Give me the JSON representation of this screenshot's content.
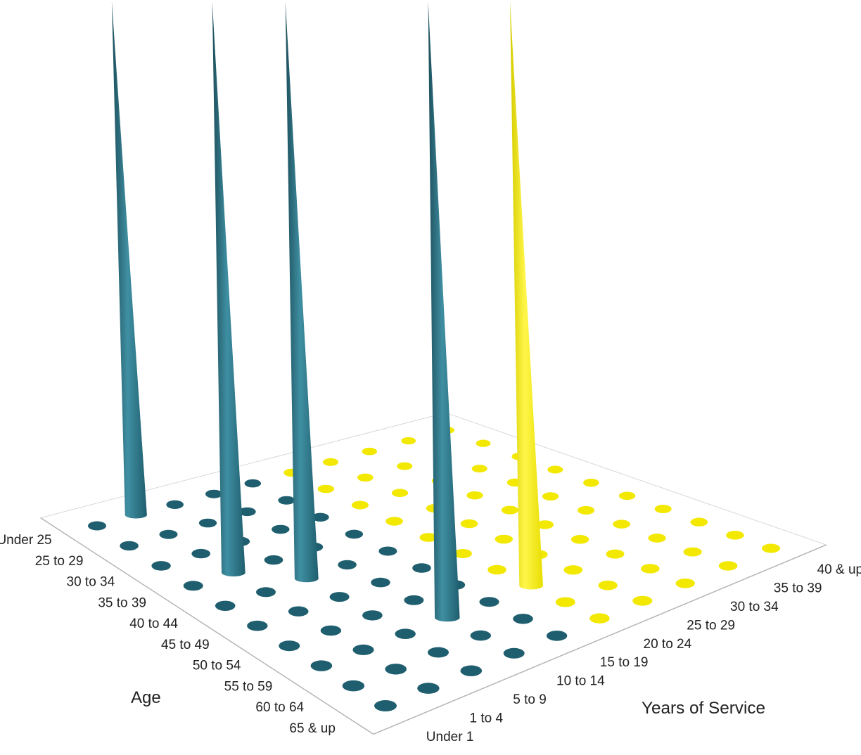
{
  "chart_data": {
    "type": "3d-spike",
    "age_axis": {
      "label": "Age",
      "categories": [
        "Under 25",
        "25 to 29",
        "30 to 34",
        "35 to 39",
        "40 to 44",
        "45 to 49",
        "50 to 54",
        "55 to 59",
        "60 to 64",
        "65 & up"
      ]
    },
    "service_axis": {
      "label": "Years of Service",
      "categories": [
        "Under 1",
        "1 to 4",
        "5 to 9",
        "10 to 14",
        "15 to 19",
        "20 to 24",
        "25 to 29",
        "30 to 34",
        "35 to 39",
        "40 & up"
      ]
    },
    "grid": "markers at every age × service cell",
    "colors": {
      "teal": "#1f5e6e",
      "teal_light": "#3f8fa2",
      "yellow": "#f2e800",
      "yellow_dark": "#c9c000",
      "frame": "#b5b5b5"
    },
    "marker_colors": [
      [
        "teal",
        "teal",
        "teal",
        "teal",
        "teal",
        "yellow",
        "yellow",
        "yellow",
        "yellow",
        "yellow"
      ],
      [
        "teal",
        "teal",
        "teal",
        "teal",
        "teal",
        "yellow",
        "yellow",
        "yellow",
        "yellow",
        "yellow"
      ],
      [
        "teal",
        "teal",
        "teal",
        "teal",
        "teal",
        "yellow",
        "yellow",
        "yellow",
        "yellow",
        "yellow"
      ],
      [
        "teal",
        "teal",
        "teal",
        "teal",
        "teal",
        "yellow",
        "yellow",
        "yellow",
        "yellow",
        "yellow"
      ],
      [
        "teal",
        "teal",
        "teal",
        "teal",
        "teal",
        "yellow",
        "yellow",
        "yellow",
        "yellow",
        "yellow"
      ],
      [
        "teal",
        "teal",
        "teal",
        "teal",
        "teal",
        "yellow",
        "yellow",
        "yellow",
        "yellow",
        "yellow"
      ],
      [
        "teal",
        "teal",
        "teal",
        "teal",
        "teal",
        "yellow",
        "yellow",
        "yellow",
        "yellow",
        "yellow"
      ],
      [
        "teal",
        "teal",
        "teal",
        "teal",
        "teal",
        "yellow",
        "yellow",
        "yellow",
        "yellow",
        "yellow"
      ],
      [
        "teal",
        "teal",
        "teal",
        "teal",
        "teal",
        "yellow",
        "yellow",
        "yellow",
        "yellow",
        "yellow"
      ],
      [
        "teal",
        "teal",
        "teal",
        "teal",
        "teal",
        "yellow",
        "yellow",
        "yellow",
        "yellow",
        "yellow"
      ]
    ],
    "spikes": [
      {
        "age": "Under 25",
        "service": "1 to 4",
        "color": "teal",
        "height_rel": 1.0
      },
      {
        "age": "35 to 39",
        "service": "1 to 4",
        "color": "teal",
        "height_rel": 1.0
      },
      {
        "age": "40 to 44",
        "service": "5 to 9",
        "color": "teal",
        "height_rel": 1.0
      },
      {
        "age": "55 to 59",
        "service": "10 to 14",
        "color": "teal",
        "height_rel": 1.0
      },
      {
        "age": "55 to 59",
        "service": "20 to 24",
        "color": "yellow",
        "height_rel": 1.0
      }
    ]
  }
}
